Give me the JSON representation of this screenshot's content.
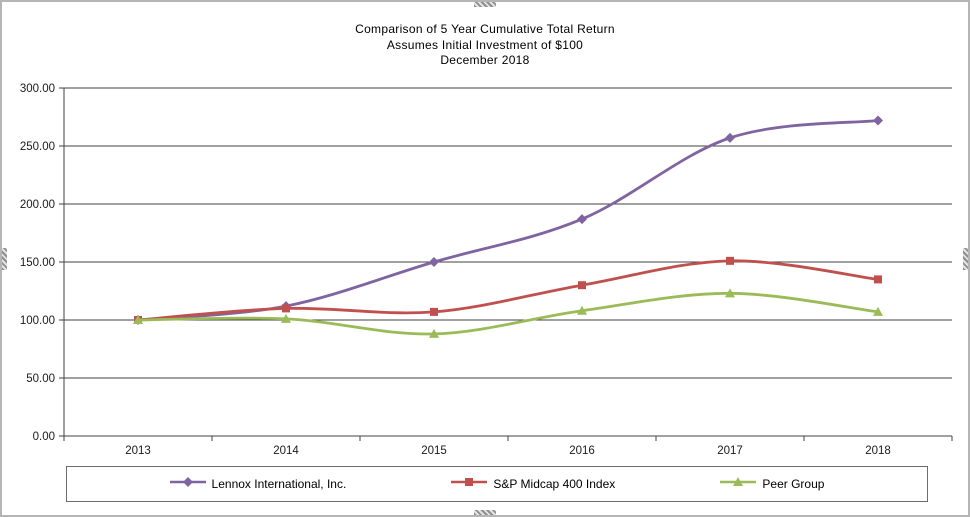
{
  "title": {
    "line1": "Comparison of 5 Year Cumulative Total Return",
    "line2": "Assumes Initial Investment of $100",
    "line3": "December 2018"
  },
  "chart_data": {
    "type": "line",
    "smooth": true,
    "grid": true,
    "legend_position": "bottom",
    "categories": [
      "2013",
      "2014",
      "2015",
      "2016",
      "2017",
      "2018"
    ],
    "series": [
      {
        "name": "Lennox International, Inc.",
        "values": [
          100,
          112,
          150,
          187,
          257,
          272
        ],
        "color": "#8064A2",
        "marker": "diamond"
      },
      {
        "name": "S&P Midcap 400 Index",
        "values": [
          100,
          110,
          107,
          130,
          151,
          135
        ],
        "color": "#C0504D",
        "marker": "square"
      },
      {
        "name": "Peer Group",
        "values": [
          100,
          101,
          88,
          108,
          123,
          107
        ],
        "color": "#9BBB59",
        "marker": "triangle"
      }
    ],
    "ylim": [
      0,
      300
    ],
    "ytick_step": 50,
    "ytick_labels": [
      "0.00",
      "50.00",
      "100.00",
      "150.00",
      "200.00",
      "250.00",
      "300.00"
    ],
    "axis_color": "#404040",
    "text_color": "#1a1a1a"
  }
}
